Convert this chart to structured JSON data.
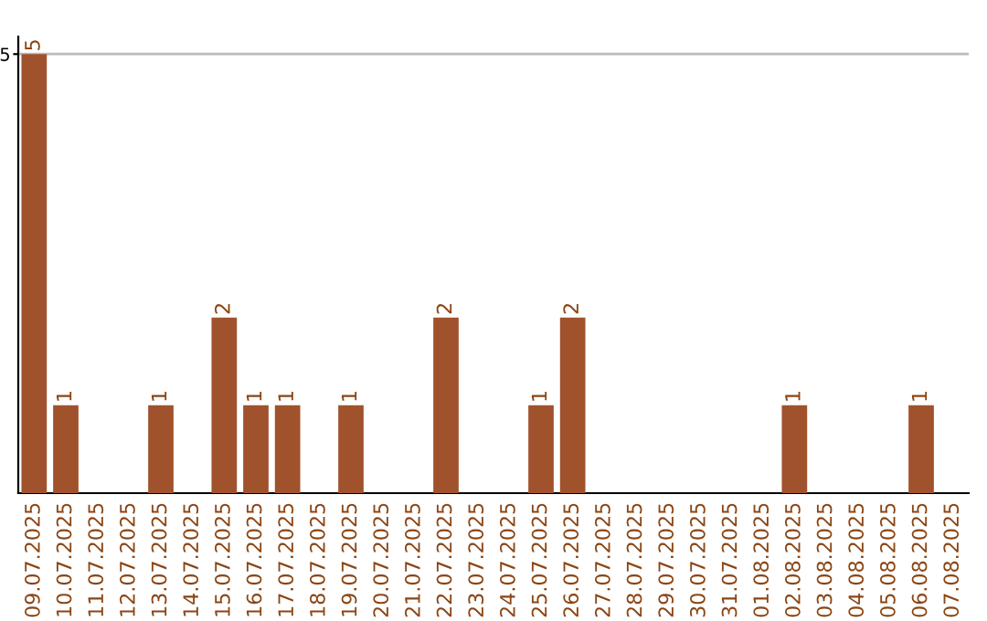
{
  "chart_data": {
    "type": "bar",
    "categories": [
      "09.07.2025",
      "10.07.2025",
      "11.07.2025",
      "12.07.2025",
      "13.07.2025",
      "14.07.2025",
      "15.07.2025",
      "16.07.2025",
      "17.07.2025",
      "18.07.2025",
      "19.07.2025",
      "20.07.2025",
      "21.07.2025",
      "22.07.2025",
      "23.07.2025",
      "24.07.2025",
      "25.07.2025",
      "26.07.2025",
      "27.07.2025",
      "28.07.2025",
      "29.07.2025",
      "30.07.2025",
      "31.07.2025",
      "01.08.2025",
      "02.08.2025",
      "03.08.2025",
      "04.08.2025",
      "05.08.2025",
      "06.08.2025",
      "07.08.2025"
    ],
    "values": [
      5,
      1,
      0,
      0,
      1,
      0,
      2,
      1,
      1,
      0,
      1,
      0,
      0,
      2,
      0,
      0,
      1,
      2,
      0,
      0,
      0,
      0,
      0,
      0,
      1,
      0,
      0,
      0,
      1,
      0
    ],
    "color": "#a0522d",
    "value_labels": [
      "5",
      "1",
      null,
      null,
      "1",
      null,
      "2",
      "1",
      "1",
      null,
      "1",
      null,
      null,
      "2",
      null,
      null,
      "1",
      "2",
      null,
      null,
      null,
      null,
      null,
      null,
      "1",
      null,
      null,
      null,
      "1",
      null
    ],
    "ylim": [
      0,
      5.2
    ],
    "yticks": [
      5
    ],
    "grid": "y"
  }
}
